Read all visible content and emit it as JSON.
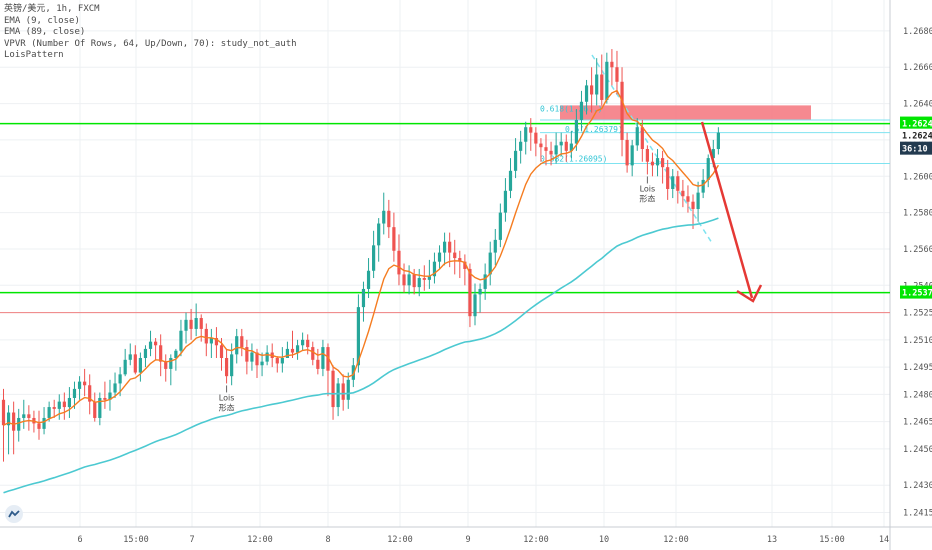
{
  "legend": {
    "title": "英镑/美元, 1h, FXCM",
    "ema9": "EMA (9, close)",
    "ema89": "EMA (89, close)",
    "vpvr": "VPVR (Number Of Rows, 64, Up/Down, 70): study_not_auth",
    "pattern": "LoisPattern"
  },
  "colors": {
    "up": "#26a69a",
    "down": "#ef5350",
    "ema_fast": "#f57c20",
    "ema_slow": "#4cc9d1",
    "support": "#00e600",
    "resistance_zone": "#f4747d",
    "arrow": "#e53935",
    "grid": "#eef0f3",
    "fib": "#7fe3f0"
  },
  "markers": [
    {
      "text1": "Lois",
      "text2": "形态",
      "x_index": 44
    },
    {
      "text1": "Lois",
      "text2": "形态",
      "x_index": 127
    }
  ],
  "fib_labels": [
    "0.5(1.26379)",
    "0.382(1.26095)",
    "0.618(1.26..)"
  ],
  "chart_data": {
    "type": "candlestick",
    "symbol": "英镑/美元",
    "interval": "1h",
    "source": "FXCM",
    "y_ticks": [
      1.2415,
      1.243,
      1.245,
      1.2465,
      1.248,
      1.2495,
      1.251,
      1.2525,
      1.254,
      1.256,
      1.258,
      1.26,
      1.262,
      1.264,
      1.266,
      1.268
    ],
    "y_tick_labels": [
      "1.24150",
      "1.24300",
      "1.24500",
      "1.24650",
      "1.24800",
      "1.24950",
      "1.25100",
      "1.25250",
      "1.25400",
      "1.25600",
      "1.25800",
      "1.26000",
      "1.26200",
      "1.26400",
      "1.26600",
      "1.26800"
    ],
    "ylim": [
      1.2407,
      1.2697
    ],
    "x_ticks": [
      {
        "label": "6",
        "x": 20
      },
      {
        "label": "15:00",
        "x": 34
      },
      {
        "label": "7",
        "x": 48
      },
      {
        "label": "12:00",
        "x": 65
      },
      {
        "label": "8",
        "x": 82
      },
      {
        "label": "12:00",
        "x": 100
      },
      {
        "label": "9",
        "x": 117
      },
      {
        "label": "12:00",
        "x": 134
      },
      {
        "label": "10",
        "x": 151
      },
      {
        "label": "12:00",
        "x": 169
      },
      {
        "label": "13",
        "x": 193
      },
      {
        "label": "15:00",
        "x": 208
      },
      {
        "label": "14",
        "x": 221
      }
    ],
    "last_price": "1.26241",
    "countdown": "36:10",
    "price_tags": {
      "upper": "1.2624",
      "lower": "1.2537"
    },
    "lines": {
      "support_upper": 1.2629,
      "support_lower": 1.2536,
      "red_level": 1.2525,
      "cyan_upper": 1.2631,
      "cyan_mid": 1.2624,
      "cyan_low": 1.2607,
      "zone_low": 1.2631,
      "zone_high": 1.2639
    },
    "candles": [
      [
        1.2477,
        1.2463,
        1.2483,
        1.2443
      ],
      [
        1.2463,
        1.247,
        1.2474,
        1.2447
      ],
      [
        1.247,
        1.246,
        1.2476,
        1.2447
      ],
      [
        1.246,
        1.2467,
        1.2472,
        1.2454
      ],
      [
        1.2467,
        1.2469,
        1.2477,
        1.2461
      ],
      [
        1.2469,
        1.2467,
        1.2474,
        1.246
      ],
      [
        1.2467,
        1.2464,
        1.2471,
        1.2459
      ],
      [
        1.2464,
        1.2461,
        1.2471,
        1.2455
      ],
      [
        1.2461,
        1.2467,
        1.2473,
        1.2458
      ],
      [
        1.2467,
        1.2473,
        1.2476,
        1.2465
      ],
      [
        1.2473,
        1.2472,
        1.2477,
        1.2467
      ],
      [
        1.2472,
        1.2476,
        1.248,
        1.2466
      ],
      [
        1.2476,
        1.2473,
        1.2481,
        1.2466
      ],
      [
        1.2473,
        1.2478,
        1.2484,
        1.2467
      ],
      [
        1.2478,
        1.2483,
        1.2487,
        1.2472
      ],
      [
        1.2483,
        1.2487,
        1.249,
        1.2477
      ],
      [
        1.2487,
        1.2485,
        1.2494,
        1.2479
      ],
      [
        1.2485,
        1.2476,
        1.2491,
        1.2469
      ],
      [
        1.2476,
        1.2467,
        1.2481,
        1.2465
      ],
      [
        1.2467,
        1.2478,
        1.2481,
        1.2463
      ],
      [
        1.2478,
        1.2477,
        1.2487,
        1.2472
      ],
      [
        1.2477,
        1.2481,
        1.2488,
        1.2471
      ],
      [
        1.2481,
        1.2486,
        1.2492,
        1.2478
      ],
      [
        1.2486,
        1.2491,
        1.2495,
        1.2479
      ],
      [
        1.2491,
        1.2499,
        1.2505,
        1.249
      ],
      [
        1.2499,
        1.2502,
        1.2508,
        1.2496
      ],
      [
        1.2502,
        1.2492,
        1.2507,
        1.2491
      ],
      [
        1.2492,
        1.25,
        1.2503,
        1.2487
      ],
      [
        1.25,
        1.2505,
        1.2507,
        1.2495
      ],
      [
        1.2505,
        1.2509,
        1.2515,
        1.2501
      ],
      [
        1.2509,
        1.2507,
        1.2511,
        1.2499
      ],
      [
        1.2507,
        1.2498,
        1.2513,
        1.249
      ],
      [
        1.2498,
        1.2494,
        1.2502,
        1.2487
      ],
      [
        1.2494,
        1.25,
        1.2502,
        1.2485
      ],
      [
        1.25,
        1.2504,
        1.2505,
        1.2493
      ],
      [
        1.2504,
        1.2515,
        1.2521,
        1.2501
      ],
      [
        1.2515,
        1.2521,
        1.2525,
        1.2508
      ],
      [
        1.2521,
        1.2516,
        1.2527,
        1.251
      ],
      [
        1.2516,
        1.2522,
        1.253,
        1.2512
      ],
      [
        1.2522,
        1.2516,
        1.2524,
        1.2509
      ],
      [
        1.2516,
        1.2508,
        1.2519,
        1.2501
      ],
      [
        1.2508,
        1.2511,
        1.2516,
        1.25
      ],
      [
        1.2511,
        1.2507,
        1.2517,
        1.25
      ],
      [
        1.2507,
        1.25,
        1.2511,
        1.2493
      ],
      [
        1.25,
        1.249,
        1.2505,
        1.2486
      ],
      [
        1.249,
        1.2502,
        1.2508,
        1.2485
      ],
      [
        1.2502,
        1.2512,
        1.2516,
        1.2497
      ],
      [
        1.2512,
        1.2506,
        1.2516,
        1.2501
      ],
      [
        1.2506,
        1.2498,
        1.251,
        1.2491
      ],
      [
        1.2498,
        1.2503,
        1.2508,
        1.2493
      ],
      [
        1.2503,
        1.2496,
        1.2505,
        1.2489
      ],
      [
        1.2496,
        1.2498,
        1.2503,
        1.249
      ],
      [
        1.2498,
        1.2503,
        1.2507,
        1.2496
      ],
      [
        1.2503,
        1.25,
        1.2508,
        1.2495
      ],
      [
        1.25,
        1.2497,
        1.2501,
        1.2492
      ],
      [
        1.2497,
        1.25,
        1.2506,
        1.2492
      ],
      [
        1.25,
        1.2505,
        1.2509,
        1.25
      ],
      [
        1.2505,
        1.2503,
        1.2515,
        1.25
      ],
      [
        1.2503,
        1.2507,
        1.251,
        1.2499
      ],
      [
        1.2507,
        1.251,
        1.2514,
        1.2504
      ],
      [
        1.251,
        1.2506,
        1.2513,
        1.2502
      ],
      [
        1.2506,
        1.2499,
        1.2509,
        1.2496
      ],
      [
        1.2499,
        1.2494,
        1.2505,
        1.2491
      ],
      [
        1.2494,
        1.2506,
        1.251,
        1.249
      ],
      [
        1.2506,
        1.2493,
        1.2508,
        1.2479
      ],
      [
        1.2493,
        1.2473,
        1.2496,
        1.2466
      ],
      [
        1.2473,
        1.2486,
        1.2489,
        1.2468
      ],
      [
        1.2486,
        1.2477,
        1.2491,
        1.2471
      ],
      [
        1.2477,
        1.2488,
        1.2492,
        1.2472
      ],
      [
        1.2488,
        1.2496,
        1.25,
        1.2484
      ],
      [
        1.2496,
        1.2528,
        1.2535,
        1.2492
      ],
      [
        1.2528,
        1.2538,
        1.2542,
        1.252
      ],
      [
        1.2538,
        1.2548,
        1.2555,
        1.2533
      ],
      [
        1.2548,
        1.2562,
        1.257,
        1.2544
      ],
      [
        1.2562,
        1.2574,
        1.2577,
        1.2553
      ],
      [
        1.2574,
        1.2581,
        1.2591,
        1.2568
      ],
      [
        1.2581,
        1.2572,
        1.2587,
        1.2566
      ],
      [
        1.2572,
        1.2559,
        1.258,
        1.2553
      ],
      [
        1.2559,
        1.2546,
        1.2568,
        1.254
      ],
      [
        1.2546,
        1.254,
        1.2552,
        1.2536
      ],
      [
        1.254,
        1.2546,
        1.2551,
        1.2535
      ],
      [
        1.2546,
        1.2539,
        1.2549,
        1.2535
      ],
      [
        1.2539,
        1.2544,
        1.2549,
        1.2534
      ],
      [
        1.2544,
        1.2543,
        1.2551,
        1.2537
      ],
      [
        1.2543,
        1.2545,
        1.2554,
        1.2538
      ],
      [
        1.2545,
        1.2553,
        1.2558,
        1.2541
      ],
      [
        1.2553,
        1.2558,
        1.2562,
        1.2549
      ],
      [
        1.2558,
        1.2564,
        1.2569,
        1.2551
      ],
      [
        1.2564,
        1.2558,
        1.2569,
        1.255
      ],
      [
        1.2558,
        1.2555,
        1.2565,
        1.2546
      ],
      [
        1.2555,
        1.2553,
        1.2559,
        1.2544
      ],
      [
        1.2553,
        1.2549,
        1.2557,
        1.254
      ],
      [
        1.2549,
        1.2523,
        1.2552,
        1.2517
      ],
      [
        1.2523,
        1.2535,
        1.2541,
        1.2518
      ],
      [
        1.2535,
        1.2538,
        1.2541,
        1.2525
      ],
      [
        1.2538,
        1.2546,
        1.2552,
        1.2532
      ],
      [
        1.2546,
        1.2558,
        1.2564,
        1.254
      ],
      [
        1.2558,
        1.2565,
        1.2571,
        1.2551
      ],
      [
        1.2565,
        1.258,
        1.2585,
        1.2561
      ],
      [
        1.258,
        1.2592,
        1.2599,
        1.2575
      ],
      [
        1.2592,
        1.2603,
        1.261,
        1.2588
      ],
      [
        1.2603,
        1.2614,
        1.2621,
        1.2599
      ],
      [
        1.2614,
        1.2619,
        1.2625,
        1.2607
      ],
      [
        1.2619,
        1.2627,
        1.263,
        1.2612
      ],
      [
        1.2627,
        1.2624,
        1.2632,
        1.2614
      ],
      [
        1.2624,
        1.2618,
        1.2627,
        1.2611
      ],
      [
        1.2618,
        1.2616,
        1.2621,
        1.2608
      ],
      [
        1.2616,
        1.2614,
        1.2623,
        1.2606
      ],
      [
        1.2614,
        1.2612,
        1.2619,
        1.2606
      ],
      [
        1.2612,
        1.2617,
        1.2624,
        1.2607
      ],
      [
        1.2617,
        1.2619,
        1.2624,
        1.2611
      ],
      [
        1.2619,
        1.2614,
        1.2623,
        1.2608
      ],
      [
        1.2614,
        1.2618,
        1.2625,
        1.261
      ],
      [
        1.2618,
        1.2631,
        1.2637,
        1.2614
      ],
      [
        1.2631,
        1.2641,
        1.2647,
        1.2625
      ],
      [
        1.2641,
        1.265,
        1.2653,
        1.2634
      ],
      [
        1.265,
        1.2645,
        1.266,
        1.2635
      ],
      [
        1.2645,
        1.2656,
        1.2665,
        1.2639
      ],
      [
        1.2656,
        1.2642,
        1.2667,
        1.2639
      ],
      [
        1.2642,
        1.2663,
        1.2668,
        1.264
      ],
      [
        1.2663,
        1.266,
        1.267,
        1.265
      ],
      [
        1.266,
        1.2652,
        1.2669,
        1.2645
      ],
      [
        1.2652,
        1.262,
        1.266,
        1.2611
      ],
      [
        1.262,
        1.2606,
        1.2624,
        1.2602
      ],
      [
        1.2606,
        1.2617,
        1.262,
        1.26
      ],
      [
        1.2617,
        1.2627,
        1.2632,
        1.2614
      ],
      [
        1.2627,
        1.2615,
        1.2631,
        1.2608
      ],
      [
        1.2615,
        1.2608,
        1.2617,
        1.2601
      ],
      [
        1.2608,
        1.2606,
        1.2613,
        1.26
      ],
      [
        1.2606,
        1.261,
        1.2615,
        1.26
      ],
      [
        1.261,
        1.2605,
        1.2614,
        1.2596
      ],
      [
        1.2605,
        1.2593,
        1.2609,
        1.2587
      ],
      [
        1.2593,
        1.26,
        1.2604,
        1.2588
      ],
      [
        1.26,
        1.2592,
        1.2603,
        1.2585
      ],
      [
        1.2592,
        1.2589,
        1.2598,
        1.2583
      ],
      [
        1.2589,
        1.2586,
        1.2595,
        1.258
      ],
      [
        1.2586,
        1.2582,
        1.259,
        1.2571
      ],
      [
        1.2582,
        1.2591,
        1.2597,
        1.2575
      ],
      [
        1.2591,
        1.2598,
        1.2604,
        1.2588
      ],
      [
        1.2598,
        1.261,
        1.2612,
        1.2594
      ],
      [
        1.261,
        1.2615,
        1.262,
        1.2605
      ],
      [
        1.2615,
        1.2624,
        1.2627,
        1.2612
      ]
    ]
  }
}
